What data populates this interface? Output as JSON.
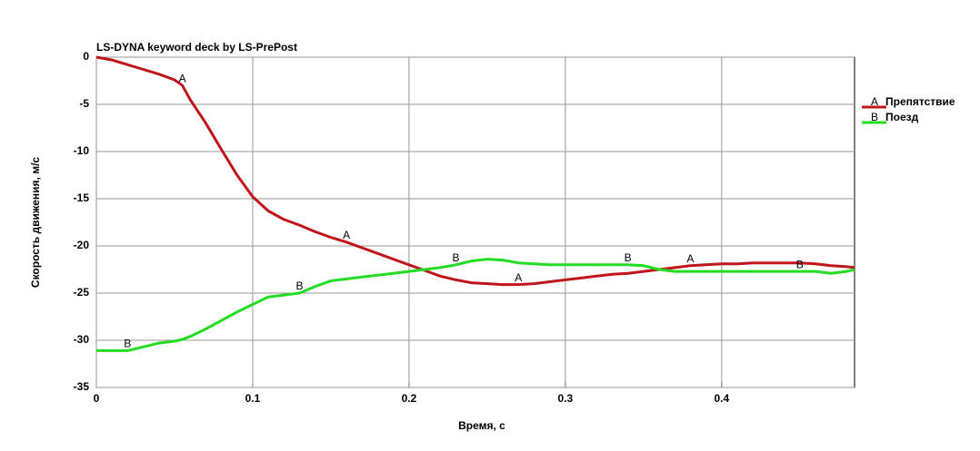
{
  "chart_data": {
    "type": "line",
    "title": "LS-DYNA keyword deck by LS-PrePost",
    "x_label": "Время, с",
    "y_label": "Скорость движения, м/с",
    "x": [
      0,
      0.01,
      0.02,
      0.03,
      0.04,
      0.05,
      0.055,
      0.06,
      0.07,
      0.08,
      0.09,
      0.1,
      0.11,
      0.12,
      0.13,
      0.14,
      0.15,
      0.16,
      0.17,
      0.18,
      0.19,
      0.2,
      0.21,
      0.22,
      0.23,
      0.24,
      0.25,
      0.26,
      0.27,
      0.28,
      0.29,
      0.3,
      0.31,
      0.32,
      0.33,
      0.34,
      0.35,
      0.36,
      0.37,
      0.38,
      0.39,
      0.4,
      0.41,
      0.42,
      0.43,
      0.44,
      0.45,
      0.46,
      0.47,
      0.48,
      0.485
    ],
    "series": [
      {
        "marker": "A",
        "name": "Препятствие",
        "color": "#c0161b",
        "values": [
          0,
          -0.3,
          -0.8,
          -1.3,
          -1.8,
          -2.4,
          -3.0,
          -4.5,
          -7,
          -9.8,
          -12.5,
          -14.8,
          -16.3,
          -17.2,
          -17.8,
          -18.5,
          -19.1,
          -19.6,
          -20.2,
          -20.8,
          -21.4,
          -22,
          -22.6,
          -23.2,
          -23.6,
          -23.9,
          -24,
          -24.1,
          -24.1,
          -24,
          -23.8,
          -23.6,
          -23.4,
          -23.2,
          -23,
          -22.9,
          -22.7,
          -22.5,
          -22.3,
          -22.1,
          -22,
          -21.9,
          -21.9,
          -21.8,
          -21.8,
          -21.8,
          -21.8,
          -21.9,
          -22.1,
          -22.2,
          -22.3
        ]
      },
      {
        "marker": "B",
        "name": "Поезд",
        "color": "#22dd22",
        "values": [
          -31.1,
          -31.1,
          -31.1,
          -30.7,
          -30.3,
          -30.1,
          -29.9,
          -29.6,
          -28.8,
          -27.9,
          -27.0,
          -26.2,
          -25.4,
          -25.2,
          -25.0,
          -24.3,
          -23.7,
          -23.5,
          -23.3,
          -23.1,
          -22.9,
          -22.7,
          -22.5,
          -22.3,
          -22.0,
          -21.6,
          -21.4,
          -21.5,
          -21.8,
          -21.9,
          -22,
          -22,
          -22,
          -22,
          -22,
          -22,
          -22.1,
          -22.5,
          -22.7,
          -22.7,
          -22.7,
          -22.7,
          -22.7,
          -22.7,
          -22.7,
          -22.7,
          -22.7,
          -22.7,
          -22.9,
          -22.7,
          -22.5
        ]
      }
    ],
    "xlim": [
      0,
      0.485
    ],
    "xticks": [
      0,
      0.1,
      0.2,
      0.3,
      0.4
    ],
    "ylim": [
      -35,
      0
    ],
    "yticks": [
      -35,
      -30,
      -25,
      -20,
      -15,
      -10,
      -5,
      0
    ],
    "grid": true,
    "legend": "right"
  }
}
